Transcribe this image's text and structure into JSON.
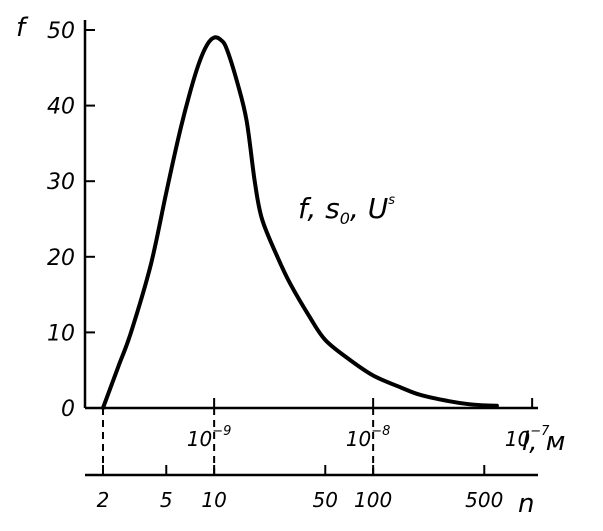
{
  "chart_data": {
    "type": "line",
    "y_axis": {
      "label": "f",
      "range": [
        0,
        50
      ],
      "ticks": [
        {
          "value": 0,
          "label": "0"
        },
        {
          "value": 10,
          "label": "10"
        },
        {
          "value": 20,
          "label": "20"
        },
        {
          "value": 30,
          "label": "30"
        },
        {
          "value": 40,
          "label": "40"
        },
        {
          "value": 50,
          "label": "50"
        }
      ]
    },
    "x_axis_l": {
      "label": "l, м",
      "scale": "log",
      "ticks": [
        {
          "value": 1e-09,
          "base": "10",
          "exp": "−9"
        },
        {
          "value": 1e-08,
          "base": "10",
          "exp": "−8"
        },
        {
          "value": 1e-07,
          "base": "10",
          "exp": "−7"
        }
      ]
    },
    "x_axis_n": {
      "label": "n",
      "scale": "log",
      "ticks": [
        {
          "value": 2,
          "label": "2"
        },
        {
          "value": 5,
          "label": "5"
        },
        {
          "value": 10,
          "label": "10"
        },
        {
          "value": 50,
          "label": "50"
        },
        {
          "value": 100,
          "label": "100"
        },
        {
          "value": 500,
          "label": "500"
        }
      ]
    },
    "dashed_reference_n": [
      2,
      10,
      100
    ],
    "series": [
      {
        "x_n": [
          2,
          2.5,
          3,
          4,
          5,
          6,
          7,
          8,
          9,
          10,
          11,
          12,
          14,
          16,
          18,
          20,
          25,
          30,
          40,
          50,
          70,
          100,
          150,
          200,
          300,
          400,
          500,
          600
        ],
        "y": [
          0,
          5.5,
          10,
          19,
          28.5,
          36,
          41.5,
          45.5,
          48,
          49,
          48.7,
          47.5,
          43,
          38,
          30,
          25,
          20,
          16.5,
          12,
          9,
          6.5,
          4.3,
          2.7,
          1.7,
          0.9,
          0.5,
          0.35,
          0.3
        ]
      }
    ],
    "annotation": {
      "main": "f, s",
      "sub": "0",
      "sep": ", U",
      "sup": "s"
    },
    "grid": false,
    "legend": "none"
  }
}
